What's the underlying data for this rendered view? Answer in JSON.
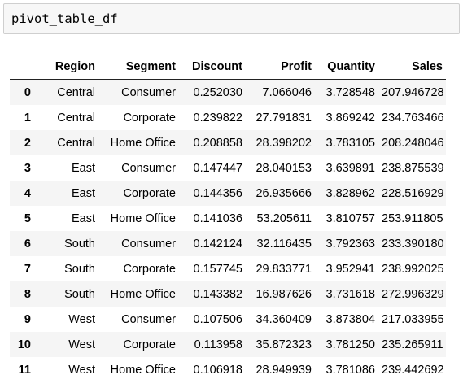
{
  "code_cell": {
    "source": "pivot_table_df"
  },
  "table": {
    "columns": [
      "",
      "Region",
      "Segment",
      "Discount",
      "Profit",
      "Quantity",
      "Sales"
    ],
    "rows": [
      [
        "0",
        "Central",
        "Consumer",
        "0.252030",
        "7.066046",
        "3.728548",
        "207.946728"
      ],
      [
        "1",
        "Central",
        "Corporate",
        "0.239822",
        "27.791831",
        "3.869242",
        "234.763466"
      ],
      [
        "2",
        "Central",
        "Home Office",
        "0.208858",
        "28.398202",
        "3.783105",
        "208.248046"
      ],
      [
        "3",
        "East",
        "Consumer",
        "0.147447",
        "28.040153",
        "3.639891",
        "238.875539"
      ],
      [
        "4",
        "East",
        "Corporate",
        "0.144356",
        "26.935666",
        "3.828962",
        "228.516929"
      ],
      [
        "5",
        "East",
        "Home Office",
        "0.141036",
        "53.205611",
        "3.810757",
        "253.911805"
      ],
      [
        "6",
        "South",
        "Consumer",
        "0.142124",
        "32.116435",
        "3.792363",
        "233.390180"
      ],
      [
        "7",
        "South",
        "Corporate",
        "0.157745",
        "29.833771",
        "3.952941",
        "238.992025"
      ],
      [
        "8",
        "South",
        "Home Office",
        "0.143382",
        "16.987626",
        "3.731618",
        "272.996329"
      ],
      [
        "9",
        "West",
        "Consumer",
        "0.107506",
        "34.360409",
        "3.873804",
        "217.033955"
      ],
      [
        "10",
        "West",
        "Corporate",
        "0.113958",
        "35.872323",
        "3.781250",
        "235.265911"
      ],
      [
        "11",
        "West",
        "Home Office",
        "0.106918",
        "28.949939",
        "3.781086",
        "239.442692"
      ]
    ]
  }
}
